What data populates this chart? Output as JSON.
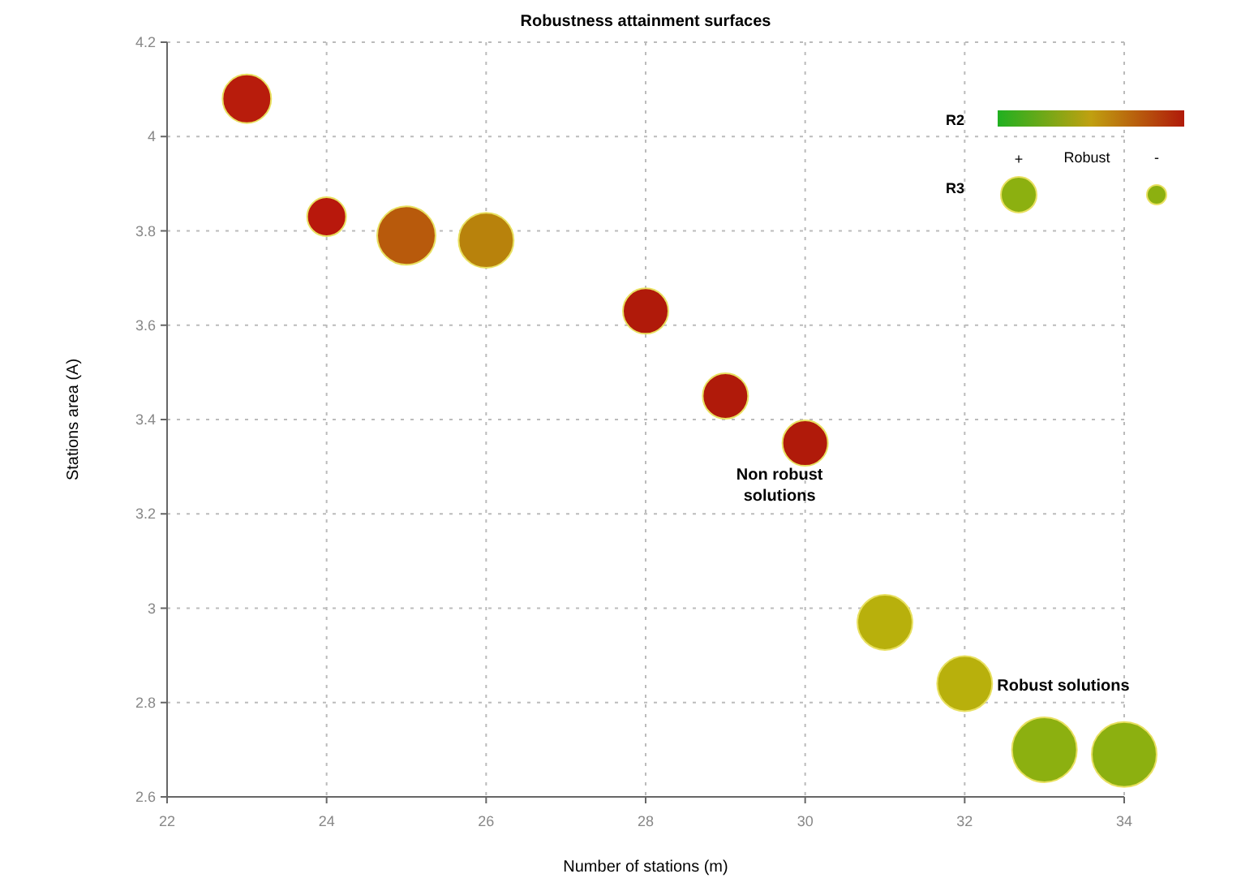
{
  "chart_data": {
    "type": "bubble",
    "title": "Robustness attainment surfaces",
    "xlabel": "Number of stations (m)",
    "ylabel": "Stations area (A)",
    "x": [
      23,
      24,
      25,
      26,
      28,
      29,
      30,
      31,
      32,
      33,
      34
    ],
    "values": [
      4.08,
      3.83,
      3.79,
      3.78,
      3.63,
      3.45,
      3.35,
      2.97,
      2.84,
      2.7,
      2.69
    ],
    "sizes": [
      0.56,
      0.36,
      0.81,
      0.72,
      0.49,
      0.49,
      0.49,
      0.72,
      0.72,
      1,
      1
    ],
    "colors": [
      "#b81c0c",
      "#b8180c",
      "#b85a0c",
      "#b8820c",
      "#b01a0a",
      "#b01a0a",
      "#b01a0a",
      "#b8b00c",
      "#b8b00c",
      "#8cb010",
      "#8cb010"
    ],
    "xlim": [
      22,
      34
    ],
    "xticks": [
      22,
      24,
      26,
      28,
      30,
      32,
      34
    ],
    "ylim": [
      2.6,
      4.2
    ],
    "yticks": [
      2.6,
      2.8,
      3,
      3.2,
      3.4,
      3.6,
      3.8,
      4,
      4.2
    ],
    "grid": true,
    "marker": "circle",
    "annotations": [
      "Non robust solutions",
      {
        "text": "Robust solutions",
        "x": 32,
        "y": 2.84
      },
      "R2",
      "+",
      "Robust",
      "-",
      "R3"
    ]
  }
}
